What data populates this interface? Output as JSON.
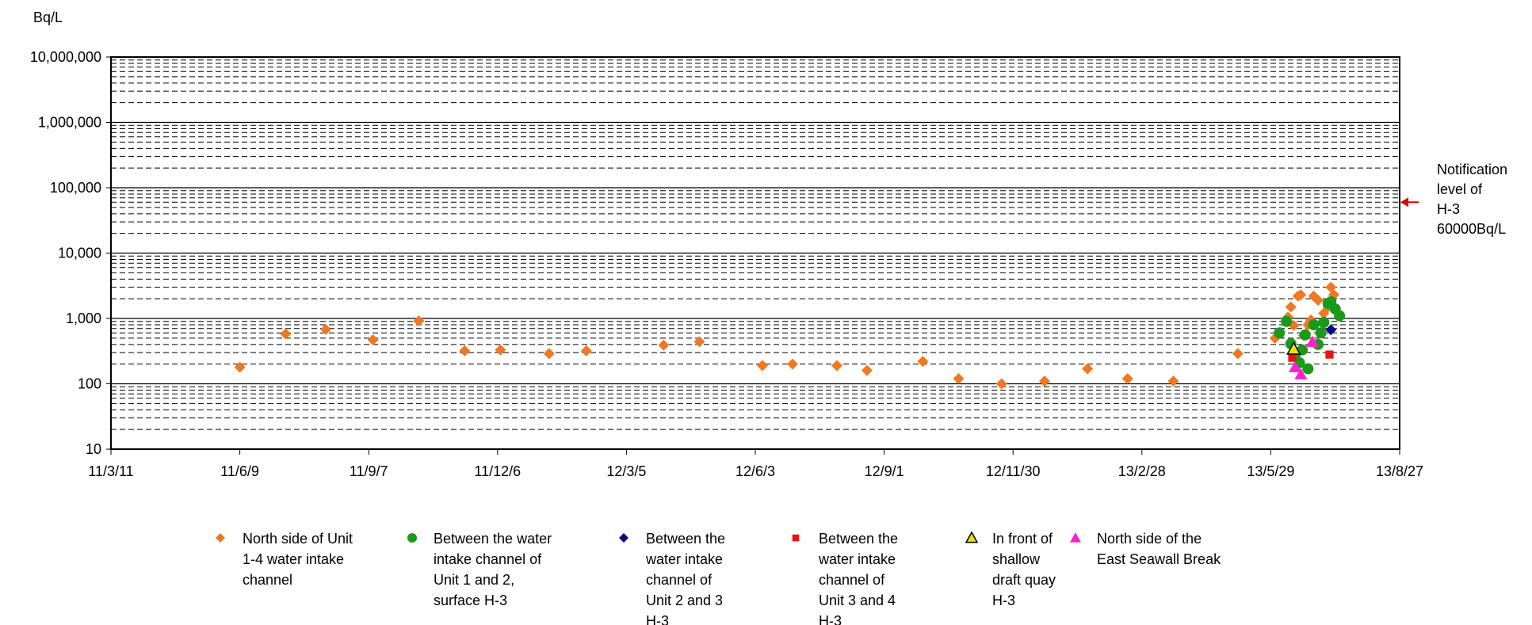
{
  "chart_data": {
    "type": "scatter",
    "ylabel": "Bq/L",
    "y_scale": "log",
    "ylim": [
      10,
      10000000
    ],
    "y_ticks": [
      "10",
      "100",
      "1,000",
      "10,000",
      "100,000",
      "1,000,000",
      "10,000,000"
    ],
    "x_ticks": [
      "11/3/11",
      "11/6/9",
      "11/9/7",
      "11/12/6",
      "12/3/5",
      "12/6/3",
      "12/9/1",
      "12/11/30",
      "13/2/28",
      "13/5/29",
      "13/8/27"
    ],
    "xlim": [
      "2011-03-11",
      "2013-08-27"
    ],
    "grid": true,
    "legend_position": "bottom",
    "notification": {
      "value": 60000,
      "label_lines": [
        "Notification",
        "level of",
        "H-3",
        "60000Bq/L"
      ],
      "color": "#e00000"
    },
    "series": [
      {
        "name_lines": [
          "North side of Unit",
          "1-4 water intake",
          "channel"
        ],
        "marker": "diamond",
        "color": "#f07820",
        "points": [
          [
            "2011-06-09",
            180
          ],
          [
            "2011-07-11",
            580
          ],
          [
            "2011-08-08",
            680
          ],
          [
            "2011-09-10",
            470
          ],
          [
            "2011-10-12",
            920
          ],
          [
            "2011-11-13",
            320
          ],
          [
            "2011-12-08",
            330
          ],
          [
            "2012-01-11",
            290
          ],
          [
            "2012-02-06",
            320
          ],
          [
            "2012-03-31",
            390
          ],
          [
            "2012-04-25",
            440
          ],
          [
            "2012-06-08",
            190
          ],
          [
            "2012-06-29",
            200
          ],
          [
            "2012-07-30",
            190
          ],
          [
            "2012-08-20",
            160
          ],
          [
            "2012-09-28",
            220
          ],
          [
            "2012-10-23",
            120
          ],
          [
            "2012-11-22",
            100
          ],
          [
            "2012-12-22",
            110
          ],
          [
            "2013-01-21",
            170
          ],
          [
            "2013-02-18",
            120
          ],
          [
            "2013-03-22",
            110
          ],
          [
            "2013-05-06",
            290
          ],
          [
            "2013-06-01",
            500
          ],
          [
            "2013-06-10",
            1050
          ],
          [
            "2013-06-12",
            1500
          ],
          [
            "2013-06-14",
            780
          ],
          [
            "2013-06-17",
            2200
          ],
          [
            "2013-06-19",
            2300
          ],
          [
            "2013-06-21",
            550
          ],
          [
            "2013-06-24",
            800
          ],
          [
            "2013-06-26",
            950
          ],
          [
            "2013-06-28",
            2200
          ],
          [
            "2013-07-01",
            1900
          ],
          [
            "2013-07-05",
            1200
          ],
          [
            "2013-07-08",
            1500
          ],
          [
            "2013-07-10",
            3000
          ],
          [
            "2013-07-12",
            2300
          ],
          [
            "2013-07-15",
            1200
          ]
        ]
      },
      {
        "name_lines": [
          "Between the water",
          "intake channel of",
          "Unit 1 and 2,",
          "surface H-3"
        ],
        "marker": "circle",
        "color": "#1a9a1a",
        "points": [
          [
            "2013-06-04",
            600
          ],
          [
            "2013-06-09",
            900
          ],
          [
            "2013-06-12",
            410
          ],
          [
            "2013-06-15",
            280
          ],
          [
            "2013-06-18",
            210
          ],
          [
            "2013-06-20",
            330
          ],
          [
            "2013-06-22",
            560
          ],
          [
            "2013-06-24",
            170
          ],
          [
            "2013-06-28",
            800
          ],
          [
            "2013-07-01",
            400
          ],
          [
            "2013-07-03",
            600
          ],
          [
            "2013-07-05",
            870
          ],
          [
            "2013-07-08",
            1700
          ],
          [
            "2013-07-10",
            1800
          ],
          [
            "2013-07-13",
            1400
          ],
          [
            "2013-07-16",
            1100
          ]
        ]
      },
      {
        "name_lines": [
          "Between the",
          "water intake",
          "channel of",
          "Unit 2 and 3",
          "H-3"
        ],
        "marker": "diamond",
        "color": "#0a0a80",
        "points": [
          [
            "2013-07-10",
            670
          ]
        ]
      },
      {
        "name_lines": [
          "Between the",
          "water intake",
          "channel of",
          "Unit 3 and 4",
          "H-3"
        ],
        "marker": "square",
        "color": "#ee1111",
        "points": [
          [
            "2013-06-13",
            250
          ],
          [
            "2013-07-09",
            280
          ]
        ]
      },
      {
        "name_lines": [
          "In front of",
          "shallow",
          "draft quay",
          "H-3"
        ],
        "marker": "triangle-open",
        "color": "#f0e000",
        "points": [
          [
            "2013-06-14",
            340
          ]
        ]
      },
      {
        "name_lines": [
          "North side of the",
          "East Seawall Break"
        ],
        "marker": "triangle",
        "color": "#ff22cc",
        "points": [
          [
            "2013-06-15",
            180
          ],
          [
            "2013-06-19",
            140
          ],
          [
            "2013-06-27",
            440
          ]
        ]
      }
    ]
  }
}
